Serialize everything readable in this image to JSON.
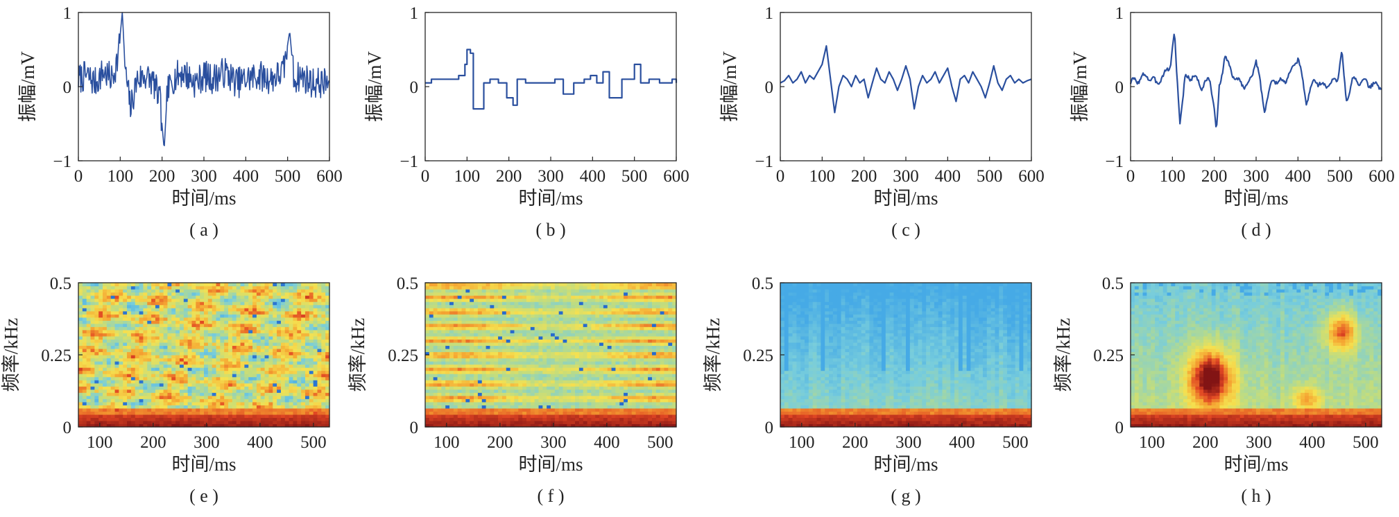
{
  "chart_data": [
    {
      "panel": "a",
      "caption": "( a )",
      "type": "line",
      "xlabel": "时间/ms",
      "ylabel": "振幅/mV",
      "xlim": [
        0,
        600
      ],
      "ylim": [
        -1,
        1
      ],
      "xticks": [
        "0",
        "100",
        "200",
        "300",
        "400",
        "500",
        "600"
      ],
      "yticks": [
        "−1",
        "0",
        "1"
      ],
      "series": [
        {
          "color": "#2a4f9e",
          "style": "noisy",
          "seed": 7,
          "x": [
            0,
            20,
            40,
            60,
            80,
            95,
            105,
            112,
            125,
            140,
            160,
            180,
            195,
            205,
            212,
            225,
            250,
            280,
            300,
            320,
            350,
            380,
            400,
            430,
            460,
            490,
            505,
            515,
            530,
            560,
            600
          ],
          "y": [
            0.1,
            0.15,
            0.05,
            0.2,
            0.1,
            0.4,
            1.0,
            0.2,
            -0.3,
            0.1,
            0.15,
            0.05,
            -0.2,
            -0.85,
            -0.1,
            0.1,
            0.2,
            0.05,
            0.15,
            0.1,
            0.2,
            0.05,
            0.1,
            0.15,
            0.1,
            0.2,
            0.75,
            0.1,
            0.15,
            0.05,
            0.05
          ]
        }
      ]
    },
    {
      "panel": "b",
      "caption": "( b )",
      "type": "line",
      "xlabel": "时间/ms",
      "ylabel": "振幅/mV",
      "xlim": [
        0,
        600
      ],
      "ylim": [
        -1,
        1
      ],
      "xticks": [
        "0",
        "100",
        "200",
        "300",
        "400",
        "500",
        "600"
      ],
      "yticks": [
        "−1",
        "0",
        "1"
      ],
      "series": [
        {
          "color": "#2a4f9e",
          "style": "step",
          "x": [
            0,
            15,
            30,
            55,
            80,
            95,
            100,
            108,
            115,
            140,
            155,
            175,
            195,
            210,
            220,
            240,
            270,
            300,
            310,
            330,
            355,
            380,
            395,
            410,
            425,
            440,
            470,
            500,
            515,
            535,
            560,
            590,
            600
          ],
          "y": [
            0.05,
            0.1,
            0.1,
            0.1,
            0.15,
            0.3,
            0.5,
            0.45,
            -0.3,
            0.05,
            0.1,
            0.05,
            -0.15,
            -0.25,
            0.1,
            0.05,
            0.05,
            0.05,
            0.1,
            -0.1,
            0.05,
            0.1,
            0.15,
            0.05,
            0.2,
            -0.15,
            0.1,
            0.3,
            0.05,
            0.1,
            0.05,
            0.1,
            0.05
          ]
        }
      ]
    },
    {
      "panel": "c",
      "caption": "( c )",
      "type": "line",
      "xlabel": "时间/ms",
      "ylabel": "振幅/mV",
      "xlim": [
        0,
        600
      ],
      "ylim": [
        -1,
        1
      ],
      "xticks": [
        "0",
        "100",
        "200",
        "300",
        "400",
        "500",
        "600"
      ],
      "yticks": [
        "−1",
        "0",
        "1"
      ],
      "series": [
        {
          "color": "#2a4f9e",
          "style": "smooth",
          "x": [
            0,
            10,
            20,
            30,
            40,
            50,
            60,
            70,
            80,
            90,
            100,
            110,
            120,
            130,
            140,
            150,
            160,
            170,
            180,
            190,
            200,
            210,
            220,
            230,
            240,
            250,
            260,
            270,
            280,
            290,
            300,
            310,
            320,
            330,
            340,
            350,
            360,
            370,
            380,
            390,
            400,
            410,
            420,
            430,
            440,
            450,
            460,
            470,
            480,
            490,
            500,
            510,
            520,
            530,
            540,
            550,
            560,
            570,
            580,
            590,
            600
          ],
          "y": [
            0.05,
            0.08,
            0.15,
            0.05,
            0.1,
            0.2,
            0.05,
            0.15,
            0.1,
            0.2,
            0.3,
            0.55,
            0.1,
            -0.35,
            0.0,
            0.15,
            0.1,
            0.0,
            0.15,
            0.05,
            0.1,
            -0.15,
            0.05,
            0.25,
            0.1,
            0.05,
            0.2,
            0.1,
            -0.05,
            0.1,
            0.28,
            0.1,
            -0.3,
            0.0,
            0.15,
            0.05,
            0.1,
            0.2,
            0.05,
            0.15,
            0.25,
            0.0,
            -0.2,
            0.1,
            0.15,
            0.05,
            0.2,
            0.1,
            0.0,
            -0.15,
            0.05,
            0.28,
            0.05,
            -0.05,
            0.1,
            0.15,
            0.05,
            0.1,
            0.05,
            0.08,
            0.1
          ]
        }
      ]
    },
    {
      "panel": "d",
      "caption": "( d )",
      "type": "line",
      "xlabel": "时间/ms",
      "ylabel": "振幅/mV",
      "xlim": [
        0,
        600
      ],
      "ylim": [
        -1,
        1
      ],
      "xticks": [
        "0",
        "100",
        "200",
        "300",
        "400",
        "500",
        "600"
      ],
      "yticks": [
        "−1",
        "0",
        "1"
      ],
      "series": [
        {
          "color": "#2a4f9e",
          "style": "wiggly",
          "seed": 3,
          "x": [
            0,
            20,
            40,
            60,
            80,
            95,
            105,
            110,
            118,
            130,
            150,
            170,
            190,
            200,
            205,
            212,
            225,
            250,
            280,
            300,
            320,
            340,
            360,
            380,
            400,
            420,
            440,
            460,
            480,
            495,
            505,
            515,
            530,
            560,
            600
          ],
          "y": [
            0.05,
            0.1,
            0.15,
            0.05,
            0.15,
            0.3,
            0.75,
            0.2,
            -0.5,
            0.1,
            0.15,
            0.0,
            0.1,
            -0.3,
            -0.6,
            0.0,
            0.4,
            0.1,
            0.0,
            0.35,
            -0.3,
            0.1,
            0.05,
            0.15,
            0.4,
            -0.2,
            0.1,
            0.0,
            0.05,
            0.1,
            0.5,
            -0.2,
            0.1,
            0.05,
            0.0
          ]
        }
      ]
    },
    {
      "panel": "e",
      "caption": "( e )",
      "type": "heatmap",
      "xlabel": "时间/ms",
      "ylabel": "频率/kHz",
      "xlim": [
        60,
        530
      ],
      "ylim": [
        0,
        0.5
      ],
      "xticks": [
        "100",
        "200",
        "300",
        "400",
        "500"
      ],
      "yticks": [
        "0",
        "0.25",
        "0.5"
      ],
      "pattern": "diffuse",
      "seed": 11,
      "low_band": 0.45,
      "band_centers": [],
      "hotspots": [],
      "cold_columns": []
    },
    {
      "panel": "f",
      "caption": "( f )",
      "type": "heatmap",
      "xlabel": "时间/ms",
      "ylabel": "频率/kHz",
      "xlim": [
        60,
        530
      ],
      "ylim": [
        0,
        0.5
      ],
      "xticks": [
        "100",
        "200",
        "300",
        "400",
        "500"
      ],
      "yticks": [
        "0",
        "0.25",
        "0.5"
      ],
      "pattern": "banded",
      "seed": 5,
      "low_band": 0.55,
      "band_centers": [
        0.05,
        0.1,
        0.15,
        0.2,
        0.25,
        0.3,
        0.35,
        0.4,
        0.45,
        0.49
      ],
      "hotspots": [],
      "cold_columns": []
    },
    {
      "panel": "g",
      "caption": "( g )",
      "type": "heatmap",
      "xlabel": "时间/ms",
      "ylabel": "频率/kHz",
      "xlim": [
        60,
        530
      ],
      "ylim": [
        0,
        0.5
      ],
      "xticks": [
        "100",
        "200",
        "300",
        "400",
        "500"
      ],
      "yticks": [
        "0",
        "0.25",
        "0.5"
      ],
      "pattern": "cold",
      "seed": 9,
      "low_band": 0.7,
      "band_centers": [],
      "hotspots": [],
      "cold_columns": [
        70,
        140,
        250,
        300,
        400,
        410,
        415,
        510
      ]
    },
    {
      "panel": "h",
      "caption": "( h )",
      "type": "heatmap",
      "xlabel": "时间/ms",
      "ylabel": "频率/kHz",
      "xlim": [
        60,
        530
      ],
      "ylim": [
        0,
        0.5
      ],
      "xticks": [
        "100",
        "200",
        "300",
        "400",
        "500"
      ],
      "yticks": [
        "0",
        "0.25",
        "0.5"
      ],
      "pattern": "blobs",
      "seed": 13,
      "low_band": 0.7,
      "band_centers": [],
      "hotspots": [
        {
          "t": 210,
          "f": 0.17,
          "st": 40,
          "sf": 0.1,
          "amp": 0.55
        },
        {
          "t": 455,
          "f": 0.33,
          "st": 28,
          "sf": 0.07,
          "amp": 0.4
        },
        {
          "t": 390,
          "f": 0.1,
          "st": 25,
          "sf": 0.04,
          "amp": 0.25
        }
      ],
      "cold_columns": []
    }
  ]
}
